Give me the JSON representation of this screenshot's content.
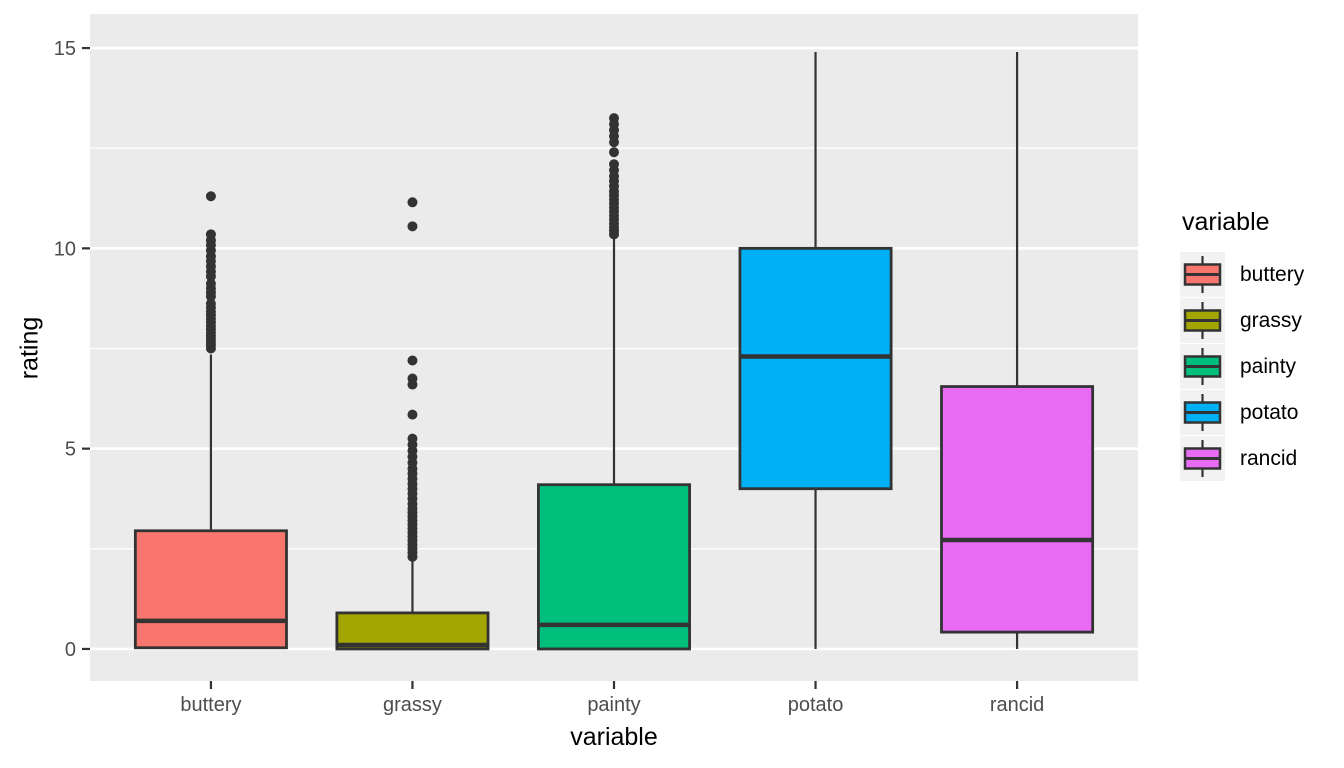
{
  "chart_data": {
    "type": "boxplot",
    "title": "",
    "xlabel": "variable",
    "ylabel": "rating",
    "categories": [
      "buttery",
      "grassy",
      "painty",
      "potato",
      "rancid"
    ],
    "y_ticks": [
      0,
      5,
      10,
      15
    ],
    "y_tick_labels": [
      "0",
      "5",
      "10",
      "15"
    ],
    "y_minor_ticks": [
      2.5,
      7.5,
      12.5
    ],
    "ylim": [
      -0.8,
      15.85
    ],
    "grid": "on",
    "legend": {
      "title": "variable",
      "position": "right",
      "entries": [
        {
          "label": "buttery",
          "color": "#F8766D"
        },
        {
          "label": "grassy",
          "color": "#A3A500"
        },
        {
          "label": "painty",
          "color": "#00BF7D"
        },
        {
          "label": "potato",
          "color": "#00B0F6"
        },
        {
          "label": "rancid",
          "color": "#E76BF3"
        }
      ]
    },
    "series": [
      {
        "name": "buttery",
        "color": "#F8766D",
        "q1": 0.03,
        "median": 0.7,
        "q3": 2.95,
        "whisker_low": 0.03,
        "whisker_high": 7.35,
        "outliers": [
          7.5,
          7.58,
          7.66,
          7.74,
          7.82,
          7.9,
          7.98,
          8.06,
          8.15,
          8.24,
          8.33,
          8.42,
          8.52,
          8.62,
          8.8,
          8.9,
          9.0,
          9.12,
          9.3,
          9.42,
          9.55,
          9.68,
          9.8,
          9.95,
          10.08,
          10.2,
          10.35,
          11.3
        ]
      },
      {
        "name": "grassy",
        "color": "#A3A500",
        "q1": 0.0,
        "median": 0.1,
        "q3": 0.9,
        "whisker_low": 0.0,
        "whisker_high": 2.2,
        "outliers": [
          2.3,
          2.4,
          2.5,
          2.6,
          2.7,
          2.8,
          2.9,
          3.0,
          3.1,
          3.2,
          3.3,
          3.4,
          3.5,
          3.62,
          3.75,
          3.88,
          4.0,
          4.12,
          4.25,
          4.38,
          4.5,
          4.65,
          4.8,
          4.95,
          5.1,
          5.25,
          5.85,
          6.6,
          6.75,
          7.2,
          10.55,
          11.15
        ]
      },
      {
        "name": "painty",
        "color": "#00BF7D",
        "q1": 0.0,
        "median": 0.6,
        "q3": 4.1,
        "whisker_low": 0.0,
        "whisker_high": 10.3,
        "outliers": [
          10.35,
          10.44,
          10.53,
          10.62,
          10.72,
          10.82,
          10.92,
          11.02,
          11.12,
          11.22,
          11.32,
          11.42,
          11.55,
          11.68,
          11.8,
          11.95,
          12.1,
          12.4,
          12.65,
          12.8,
          12.95,
          13.1,
          13.25
        ]
      },
      {
        "name": "potato",
        "color": "#00B0F6",
        "q1": 4.0,
        "median": 7.3,
        "q3": 10.0,
        "whisker_low": 0.0,
        "whisker_high": 14.9,
        "outliers": []
      },
      {
        "name": "rancid",
        "color": "#E76BF3",
        "q1": 0.42,
        "median": 2.72,
        "q3": 6.55,
        "whisker_low": 0.0,
        "whisker_high": 14.9,
        "outliers": []
      }
    ],
    "style": {
      "panel_bg": "#EBEBEB",
      "grid_color": "#FFFFFF",
      "box_outline": "#333333",
      "outlier_color": "#333333",
      "axis_text_color": "#4D4D4D",
      "axis_title_color": "#000000",
      "legend_key_bg": "#F2F2F2"
    }
  }
}
